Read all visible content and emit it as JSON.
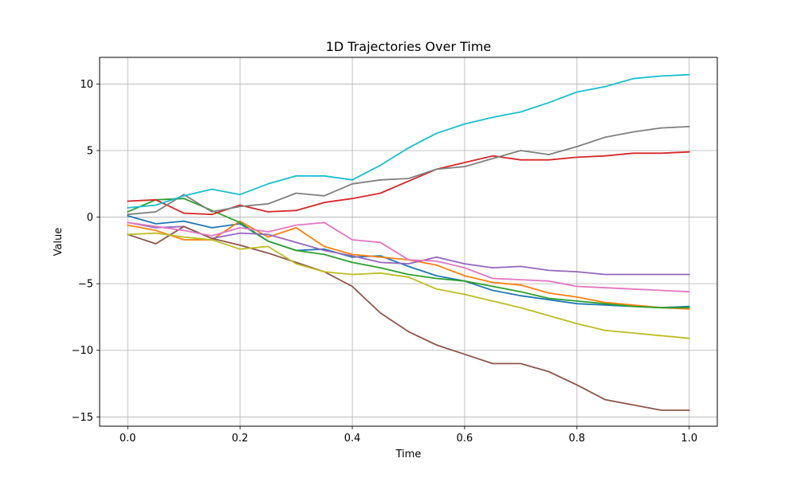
{
  "chart_data": {
    "type": "line",
    "title": "1D Trajectories Over Time",
    "xlabel": "Time",
    "ylabel": "Value",
    "xlim": [
      -0.05,
      1.05
    ],
    "ylim": [
      -15.7,
      12.0
    ],
    "xticks": [
      0.0,
      0.2,
      0.4,
      0.6,
      0.8,
      1.0
    ],
    "xtick_labels": [
      "0.0",
      "0.2",
      "0.4",
      "0.6",
      "0.8",
      "1.0"
    ],
    "yticks": [
      -15,
      -10,
      -5,
      0,
      5,
      10
    ],
    "ytick_labels": [
      "−15",
      "−10",
      "−5",
      "0",
      "5",
      "10"
    ],
    "grid": true,
    "legend": "none",
    "x": [
      0.0,
      0.05,
      0.1,
      0.15,
      0.2,
      0.25,
      0.3,
      0.35,
      0.4,
      0.45,
      0.5,
      0.55,
      0.6,
      0.65,
      0.7,
      0.75,
      0.8,
      0.85,
      0.9,
      0.95,
      1.0
    ],
    "series": [
      {
        "color": "#1f77b4",
        "values": [
          0.1,
          -0.5,
          -0.3,
          -0.8,
          -0.5,
          -1.8,
          -2.5,
          -2.4,
          -3.0,
          -2.9,
          -3.7,
          -4.4,
          -4.8,
          -5.5,
          -5.9,
          -6.2,
          -6.5,
          -6.6,
          -6.7,
          -6.8,
          -6.7
        ]
      },
      {
        "color": "#ff7f0e",
        "values": [
          -0.6,
          -1.0,
          -1.7,
          -1.7,
          -0.3,
          -1.5,
          -0.8,
          -2.2,
          -2.8,
          -3.0,
          -3.2,
          -3.6,
          -4.4,
          -4.9,
          -5.1,
          -5.7,
          -6.0,
          -6.4,
          -6.6,
          -6.8,
          -6.9
        ]
      },
      {
        "color": "#2ca02c",
        "values": [
          0.4,
          1.3,
          1.4,
          0.5,
          -0.4,
          -1.8,
          -2.5,
          -2.8,
          -3.4,
          -3.8,
          -4.3,
          -4.6,
          -4.8,
          -5.2,
          -5.6,
          -6.1,
          -6.3,
          -6.5,
          -6.7,
          -6.8,
          -6.8
        ]
      },
      {
        "color": "#d62728",
        "values": [
          1.2,
          1.3,
          0.3,
          0.2,
          0.9,
          0.4,
          0.5,
          1.1,
          1.4,
          1.8,
          2.7,
          3.6,
          4.1,
          4.6,
          4.3,
          4.3,
          4.5,
          4.6,
          4.8,
          4.8,
          4.9
        ]
      },
      {
        "color": "#9467bd",
        "values": [
          -0.4,
          -0.8,
          -0.7,
          -1.6,
          -1.2,
          -1.3,
          -1.9,
          -2.5,
          -2.9,
          -3.4,
          -3.5,
          -3.0,
          -3.5,
          -3.8,
          -3.7,
          -4.0,
          -4.1,
          -4.3,
          -4.3,
          -4.3,
          -4.3
        ]
      },
      {
        "color": "#8c564b",
        "values": [
          -1.3,
          -2.0,
          -0.7,
          -1.6,
          -2.1,
          -2.7,
          -3.4,
          -4.1,
          -5.2,
          -7.2,
          -8.6,
          -9.6,
          -10.3,
          -11.0,
          -11.0,
          -11.6,
          -12.6,
          -13.7,
          -14.1,
          -14.5,
          -14.5
        ]
      },
      {
        "color": "#e377c2",
        "values": [
          -0.4,
          -0.7,
          -1.0,
          -1.4,
          -0.8,
          -1.1,
          -0.6,
          -0.4,
          -1.7,
          -1.9,
          -3.2,
          -3.3,
          -3.8,
          -4.6,
          -4.7,
          -4.8,
          -5.2,
          -5.3,
          -5.4,
          -5.5,
          -5.6
        ]
      },
      {
        "color": "#7f7f7f",
        "values": [
          0.2,
          0.4,
          1.7,
          0.4,
          0.8,
          1.0,
          1.8,
          1.6,
          2.5,
          2.8,
          2.9,
          3.6,
          3.8,
          4.4,
          5.0,
          4.7,
          5.3,
          6.0,
          6.4,
          6.7,
          6.8
        ]
      },
      {
        "color": "#bcbd22",
        "values": [
          -1.3,
          -1.2,
          -1.5,
          -1.7,
          -2.4,
          -2.2,
          -3.5,
          -4.1,
          -4.3,
          -4.2,
          -4.5,
          -5.4,
          -5.8,
          -6.3,
          -6.8,
          -7.4,
          -8.0,
          -8.5,
          -8.7,
          -8.9,
          -9.1
        ]
      },
      {
        "color": "#17becf",
        "values": [
          0.7,
          0.9,
          1.6,
          2.1,
          1.7,
          2.5,
          3.1,
          3.1,
          2.8,
          3.9,
          5.2,
          6.3,
          7.0,
          7.5,
          7.9,
          8.6,
          9.4,
          9.8,
          10.4,
          10.6,
          10.7
        ]
      }
    ]
  }
}
